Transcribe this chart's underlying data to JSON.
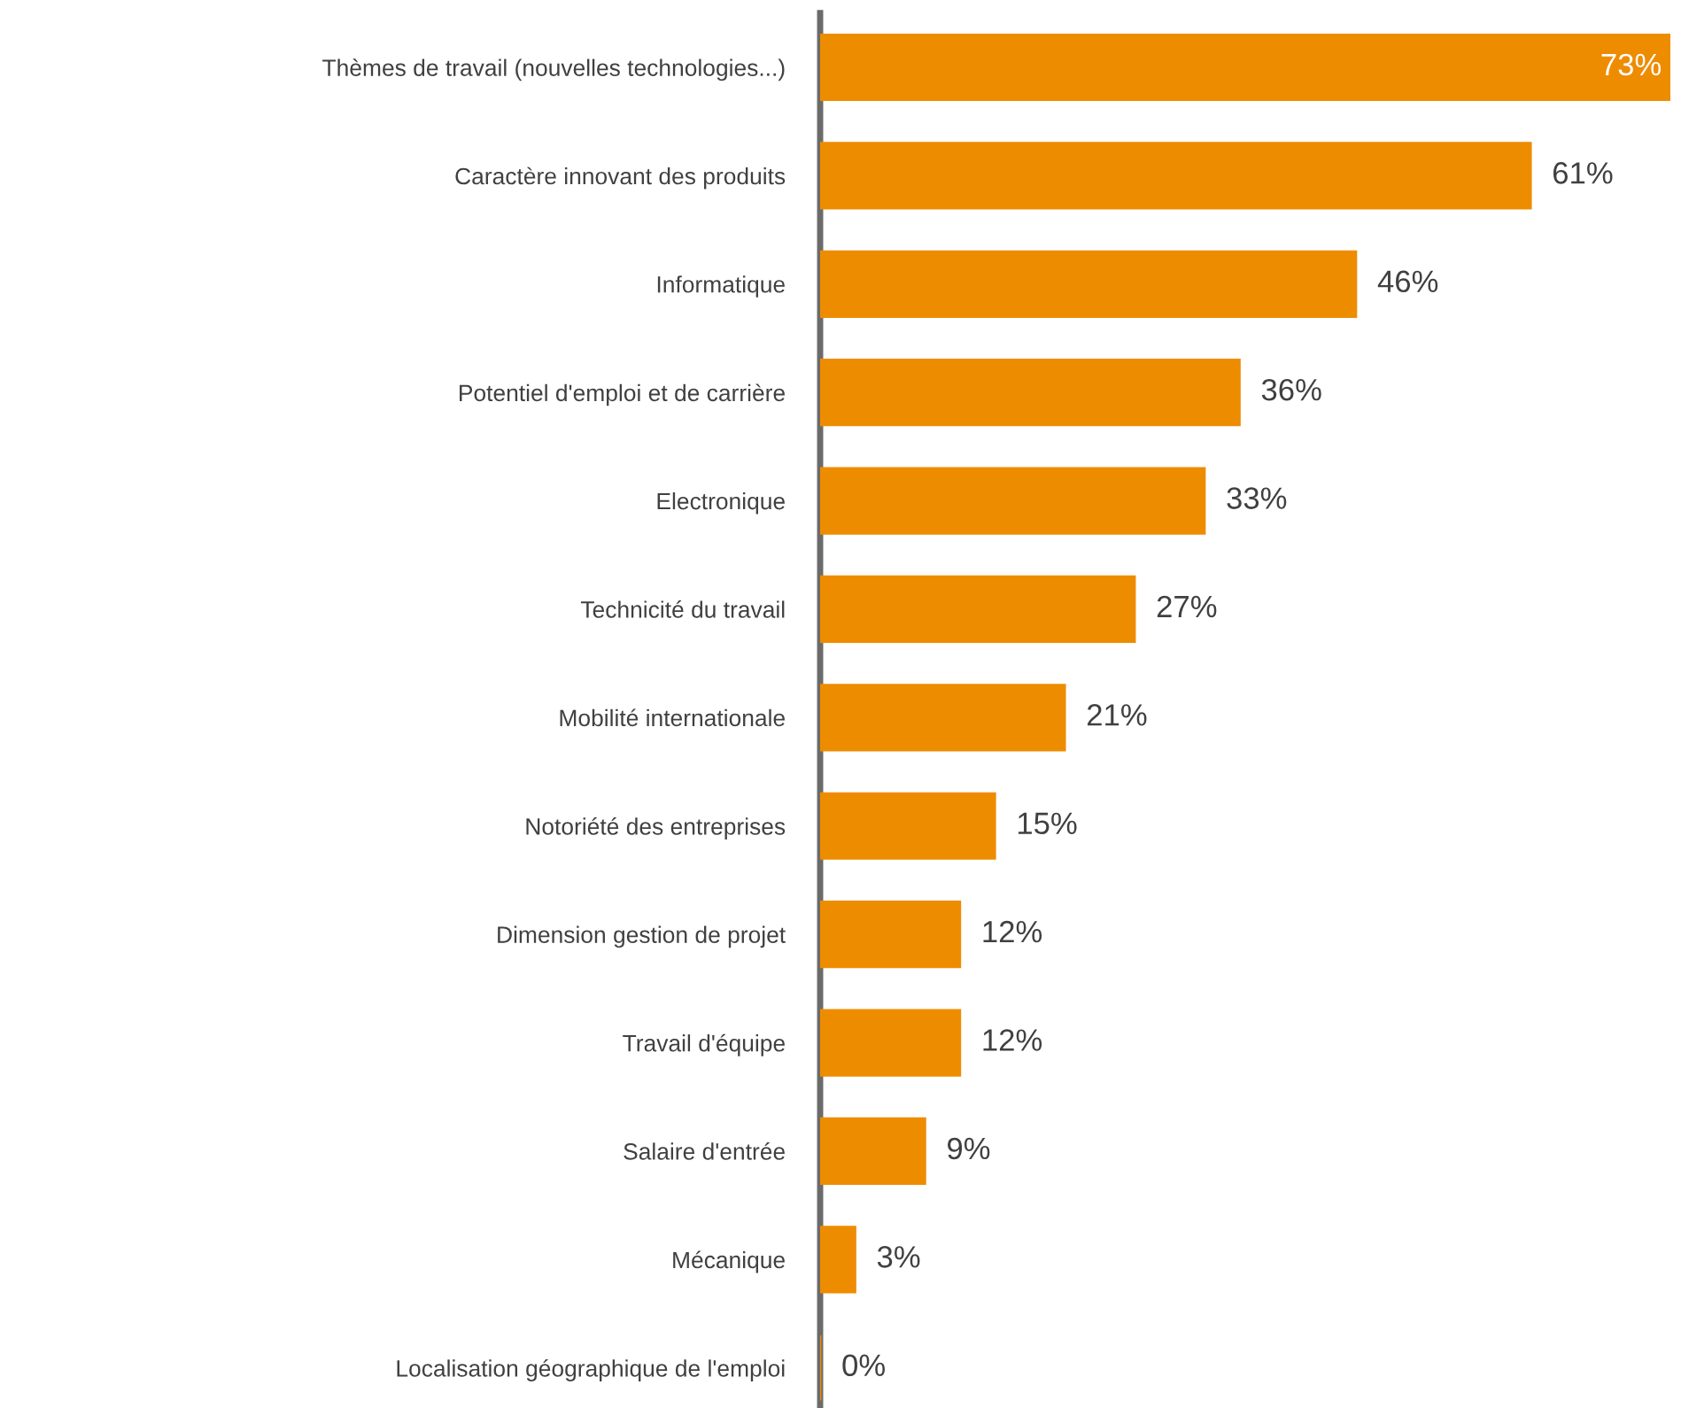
{
  "chart_data": {
    "type": "bar",
    "orientation": "horizontal",
    "categories": [
      "Thèmes de travail (nouvelles technologies...)",
      "Caractère innovant des produits",
      "Informatique",
      "Potentiel d'emploi et de carrière",
      "Electronique",
      "Technicité du travail",
      "Mobilité internationale",
      "Notoriété des entreprises",
      "Dimension gestion de projet",
      "Travail d'équipe",
      "Salaire d'entrée",
      "Mécanique",
      "Localisation géographique de l'emploi"
    ],
    "values": [
      73,
      61,
      46,
      36,
      33,
      27,
      21,
      15,
      12,
      12,
      9,
      3,
      0
    ],
    "value_labels": [
      "73%",
      "61%",
      "46%",
      "36%",
      "33%",
      "27%",
      "21%",
      "15%",
      "12%",
      "12%",
      "9%",
      "3%",
      "0%"
    ],
    "color": "#ee8c00",
    "grid": false,
    "legend": false
  }
}
